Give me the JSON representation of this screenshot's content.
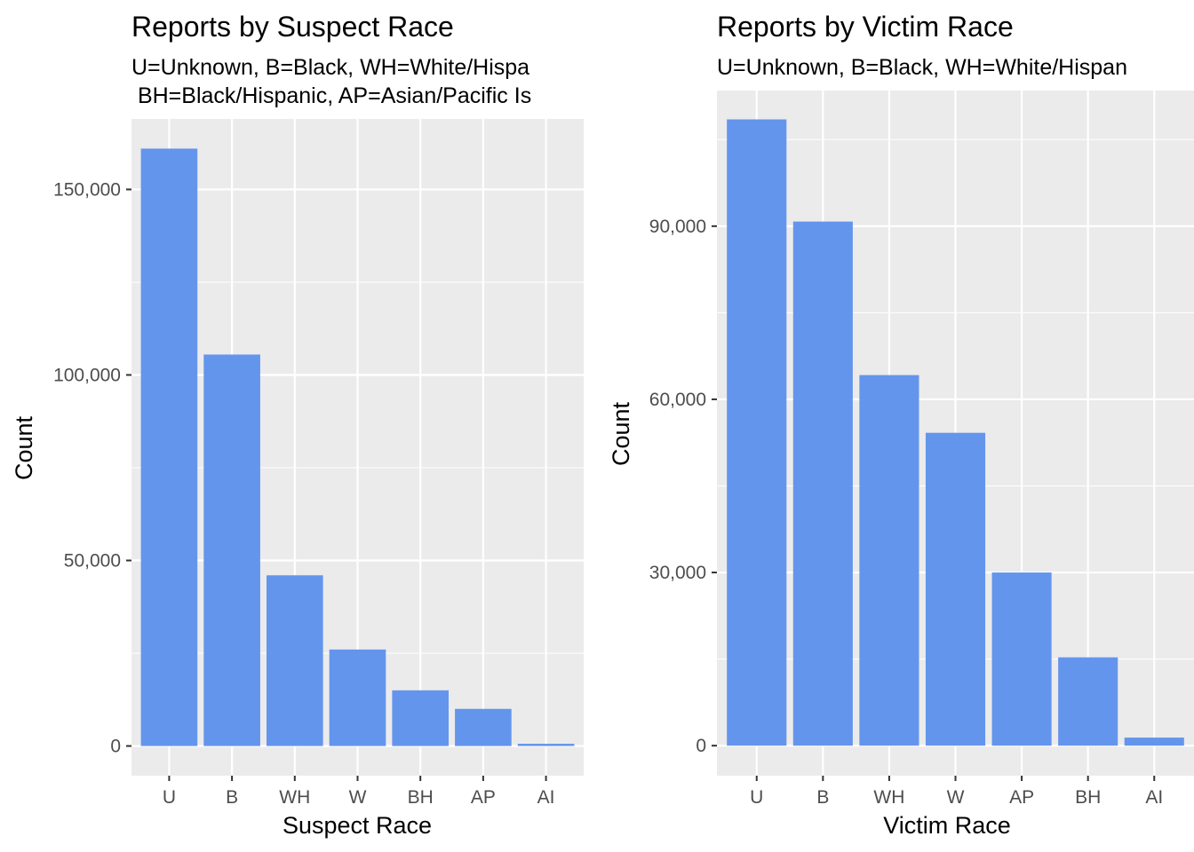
{
  "chart_data": [
    {
      "type": "bar",
      "title": "Reports by Suspect Race",
      "subtitle": [
        "U=Unknown, B=Black, WH=White/Hispa",
        " BH=Black/Hispanic, AP=Asian/Pacific Is"
      ],
      "xlabel": "Suspect Race",
      "ylabel": "Count",
      "categories": [
        "U",
        "B",
        "WH",
        "W",
        "BH",
        "AP",
        "AI"
      ],
      "values": [
        161000,
        105500,
        46000,
        26000,
        15000,
        10000,
        600
      ],
      "ylim": [
        -8000,
        169000
      ],
      "yticks": [
        0,
        50000,
        100000,
        150000
      ],
      "ytick_labels": [
        "0",
        "50,000",
        "100,000",
        "150,000"
      ],
      "grid": true,
      "colors": {
        "bar": "#6495ED",
        "panel": "#EBEBEB",
        "grid": "#FFFFFF"
      }
    },
    {
      "type": "bar",
      "title": "Reports by Victim Race",
      "subtitle": [
        "U=Unknown, B=Black, WH=White/Hispan"
      ],
      "xlabel": "Victim Race",
      "ylabel": "Count",
      "categories": [
        "U",
        "B",
        "WH",
        "W",
        "AP",
        "BH",
        "AI"
      ],
      "values": [
        108500,
        90800,
        64200,
        54200,
        30000,
        15300,
        1400
      ],
      "ylim": [
        -5200,
        113500
      ],
      "yticks": [
        0,
        30000,
        60000,
        90000
      ],
      "ytick_labels": [
        "0",
        "30,000",
        "60,000",
        "90,000"
      ],
      "grid": true,
      "colors": {
        "bar": "#6495ED",
        "panel": "#EBEBEB",
        "grid": "#FFFFFF"
      }
    }
  ]
}
